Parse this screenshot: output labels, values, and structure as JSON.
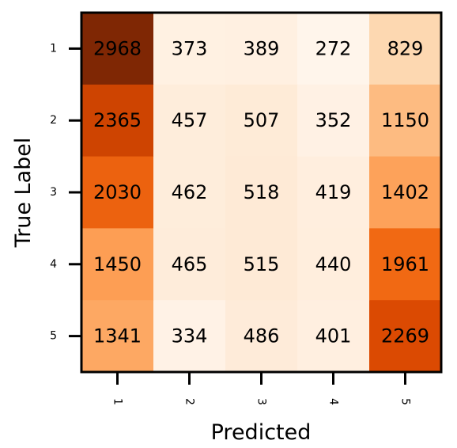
{
  "chart_data": {
    "type": "heatmap",
    "xlabel": "Predicted",
    "ylabel": "True Label",
    "x_categories": [
      "1",
      "2",
      "3",
      "4",
      "5"
    ],
    "y_categories": [
      "1",
      "2",
      "3",
      "4",
      "5"
    ],
    "values": [
      [
        2968,
        373,
        389,
        272,
        829
      ],
      [
        2365,
        457,
        507,
        352,
        1150
      ],
      [
        2030,
        462,
        518,
        419,
        1402
      ],
      [
        1450,
        465,
        515,
        440,
        1961
      ],
      [
        1341,
        334,
        486,
        401,
        2269
      ]
    ],
    "colormap": "Oranges",
    "colors": {
      "low": "#fff5eb",
      "high": "#7f2704",
      "text": "#000000",
      "frame": "#000000"
    },
    "grid": false,
    "legend": "none"
  }
}
